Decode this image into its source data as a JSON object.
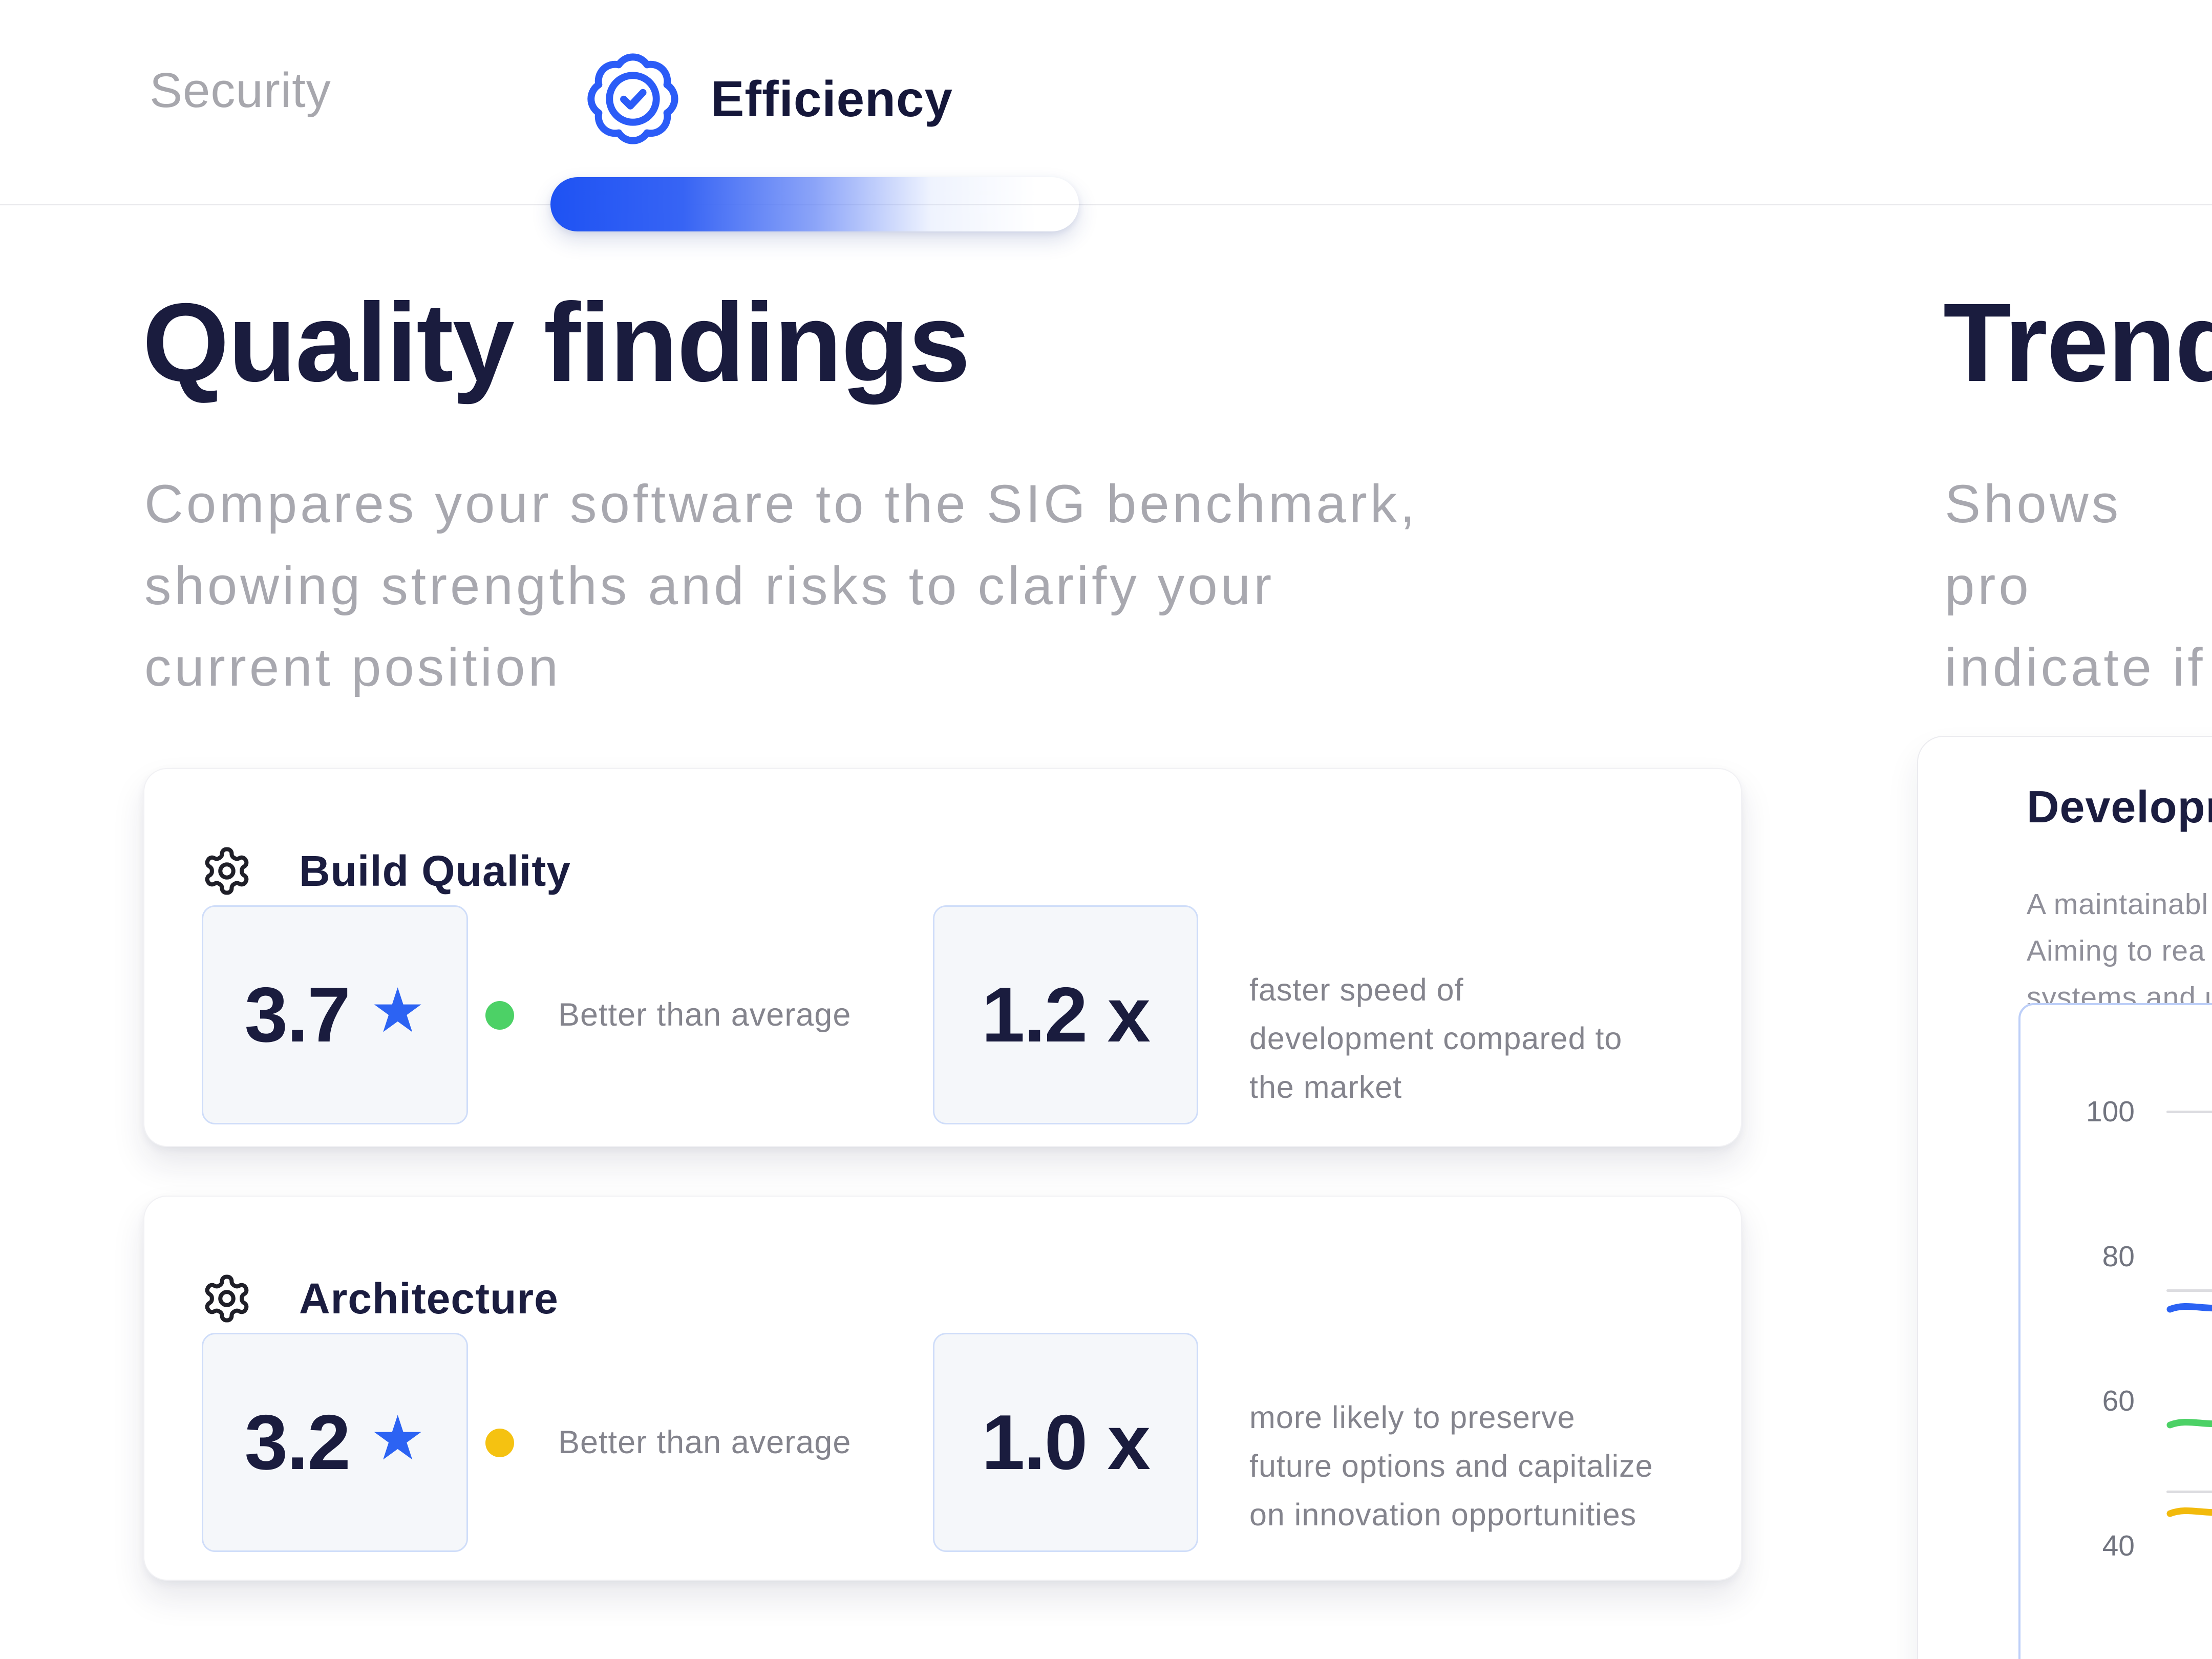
{
  "header": {
    "tabs": [
      {
        "label": "Security",
        "active": false
      },
      {
        "label": "Efficiency",
        "active": true,
        "icon": "badge-check-icon"
      }
    ],
    "active_tab_color": "#15173a",
    "inactive_tab_color": "#a7a7ad",
    "progress_gradient_start": "#1e52f3"
  },
  "quality_section": {
    "title": "Quality findings",
    "subtitle": "Compares your software to the SIG benchmark,\nshowing strengths and risks to clarify your\ncurrent position",
    "cards": [
      {
        "icon": "gear-icon",
        "title": "Build Quality",
        "score": "3.7",
        "score_star_icon": "★",
        "status_color": "#4cd166",
        "status_label": "Better than average",
        "metric": "1.2 x",
        "metric_description": "faster speed of\ndevelopment compared to\nthe market"
      },
      {
        "icon": "gear-icon",
        "title": "Architecture",
        "score": "3.2",
        "score_star_icon": "★",
        "status_color": "#f5c211",
        "status_label": "Better than average",
        "metric": "1.0 x",
        "metric_description": "more likely to preserve\nfuture options and capitalize\non innovation opportunities"
      }
    ]
  },
  "trend_section": {
    "title": "Trend",
    "subtitle": "Shows pro\nindicate if",
    "card": {
      "title": "Developm",
      "body": "A maintainabl\nAiming to rea\nsystems and u"
    }
  },
  "chart_data": {
    "type": "line",
    "title": "Development trend (clipped at right edge of screenshot)",
    "xlabel": "",
    "ylabel": "",
    "y_ticks": [
      100,
      80,
      60,
      40
    ],
    "ylim_visible": [
      40,
      100
    ],
    "legend": "none visible",
    "grid": "partial horizontal gray lines",
    "series": [
      {
        "name": "gridline-100",
        "style": "grid",
        "color": "#dcdce0",
        "value": 100
      },
      {
        "name": "gridline-upper",
        "style": "grid",
        "color": "#dcdce0",
        "value": 75.3
      },
      {
        "name": "blue-series",
        "style": "line",
        "color": "#2b62f3",
        "value": 73
      },
      {
        "name": "green-series",
        "style": "line",
        "color": "#4cd166",
        "value": 57
      },
      {
        "name": "gridline-lower",
        "style": "grid",
        "color": "#dcdce0",
        "value": 47.5
      },
      {
        "name": "yellow-series",
        "style": "line",
        "color": "#f2ba0c",
        "value": 44.7
      }
    ],
    "note": "only left ends of the series lines are visible; chart continues past screenshot edge"
  },
  "colors": {
    "accent_blue": "#2b62f3",
    "navy_text": "#1a1c3e",
    "subtitle_gray": "#a8a8af",
    "small_text_gray": "#84848d",
    "green_status": "#4cd166",
    "yellow_status": "#f5c211",
    "score_box_bg": "#f5f7fa",
    "score_box_border": "#cfddf9",
    "divider": "#e9e9ec",
    "gridline": "#dcdce0"
  }
}
